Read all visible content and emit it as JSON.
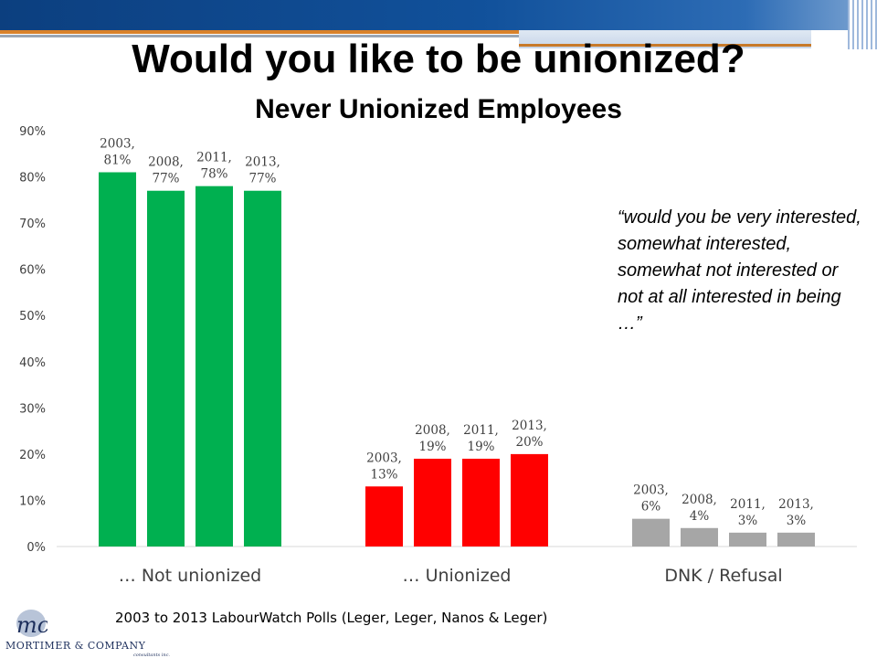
{
  "title": "Would you like to be unionized?",
  "subtitle": "Never Unionized Employees",
  "note": "“would you be very interested, somewhat interested, somewhat not interested or not at all interested in being …”",
  "source": "2003 to 2013 LabourWatch Polls (Leger, Leger, Nanos & Leger)",
  "logo": {
    "name": "Mortimer & Company",
    "sub": "consultants inc."
  },
  "colors": {
    "green": "#00b050",
    "red": "#ff0000",
    "gray": "#a6a6a6",
    "axis": "#404040"
  },
  "chart_data": {
    "type": "bar",
    "ylim": [
      0,
      90
    ],
    "yticks": [
      "0%",
      "10%",
      "20%",
      "30%",
      "40%",
      "50%",
      "60%",
      "70%",
      "80%",
      "90%"
    ],
    "grid": false,
    "groups": [
      {
        "category": "… Not unionized",
        "color": "#00b050",
        "bars": [
          {
            "year": "2003",
            "value": 81,
            "label": "2003, 81%"
          },
          {
            "year": "2008",
            "value": 77,
            "label": "2008, 77%"
          },
          {
            "year": "2011",
            "value": 78,
            "label": "2011, 78%"
          },
          {
            "year": "2013",
            "value": 77,
            "label": "2013, 77%"
          }
        ]
      },
      {
        "category": "… Unionized",
        "color": "#ff0000",
        "bars": [
          {
            "year": "2003",
            "value": 13,
            "label": "2003, 13%"
          },
          {
            "year": "2008",
            "value": 19,
            "label": "2008, 19%"
          },
          {
            "year": "2011",
            "value": 19,
            "label": "2011, 19%"
          },
          {
            "year": "2013",
            "value": 20,
            "label": "2013, 20%"
          }
        ]
      },
      {
        "category": "DNK / Refusal",
        "color": "#a6a6a6",
        "bars": [
          {
            "year": "2003",
            "value": 6,
            "label": "2003, 6%"
          },
          {
            "year": "2008",
            "value": 4,
            "label": "2008, 4%"
          },
          {
            "year": "2011",
            "value": 3,
            "label": "2011, 3%"
          },
          {
            "year": "2013",
            "value": 3,
            "label": "2013, 3%"
          }
        ]
      }
    ]
  }
}
